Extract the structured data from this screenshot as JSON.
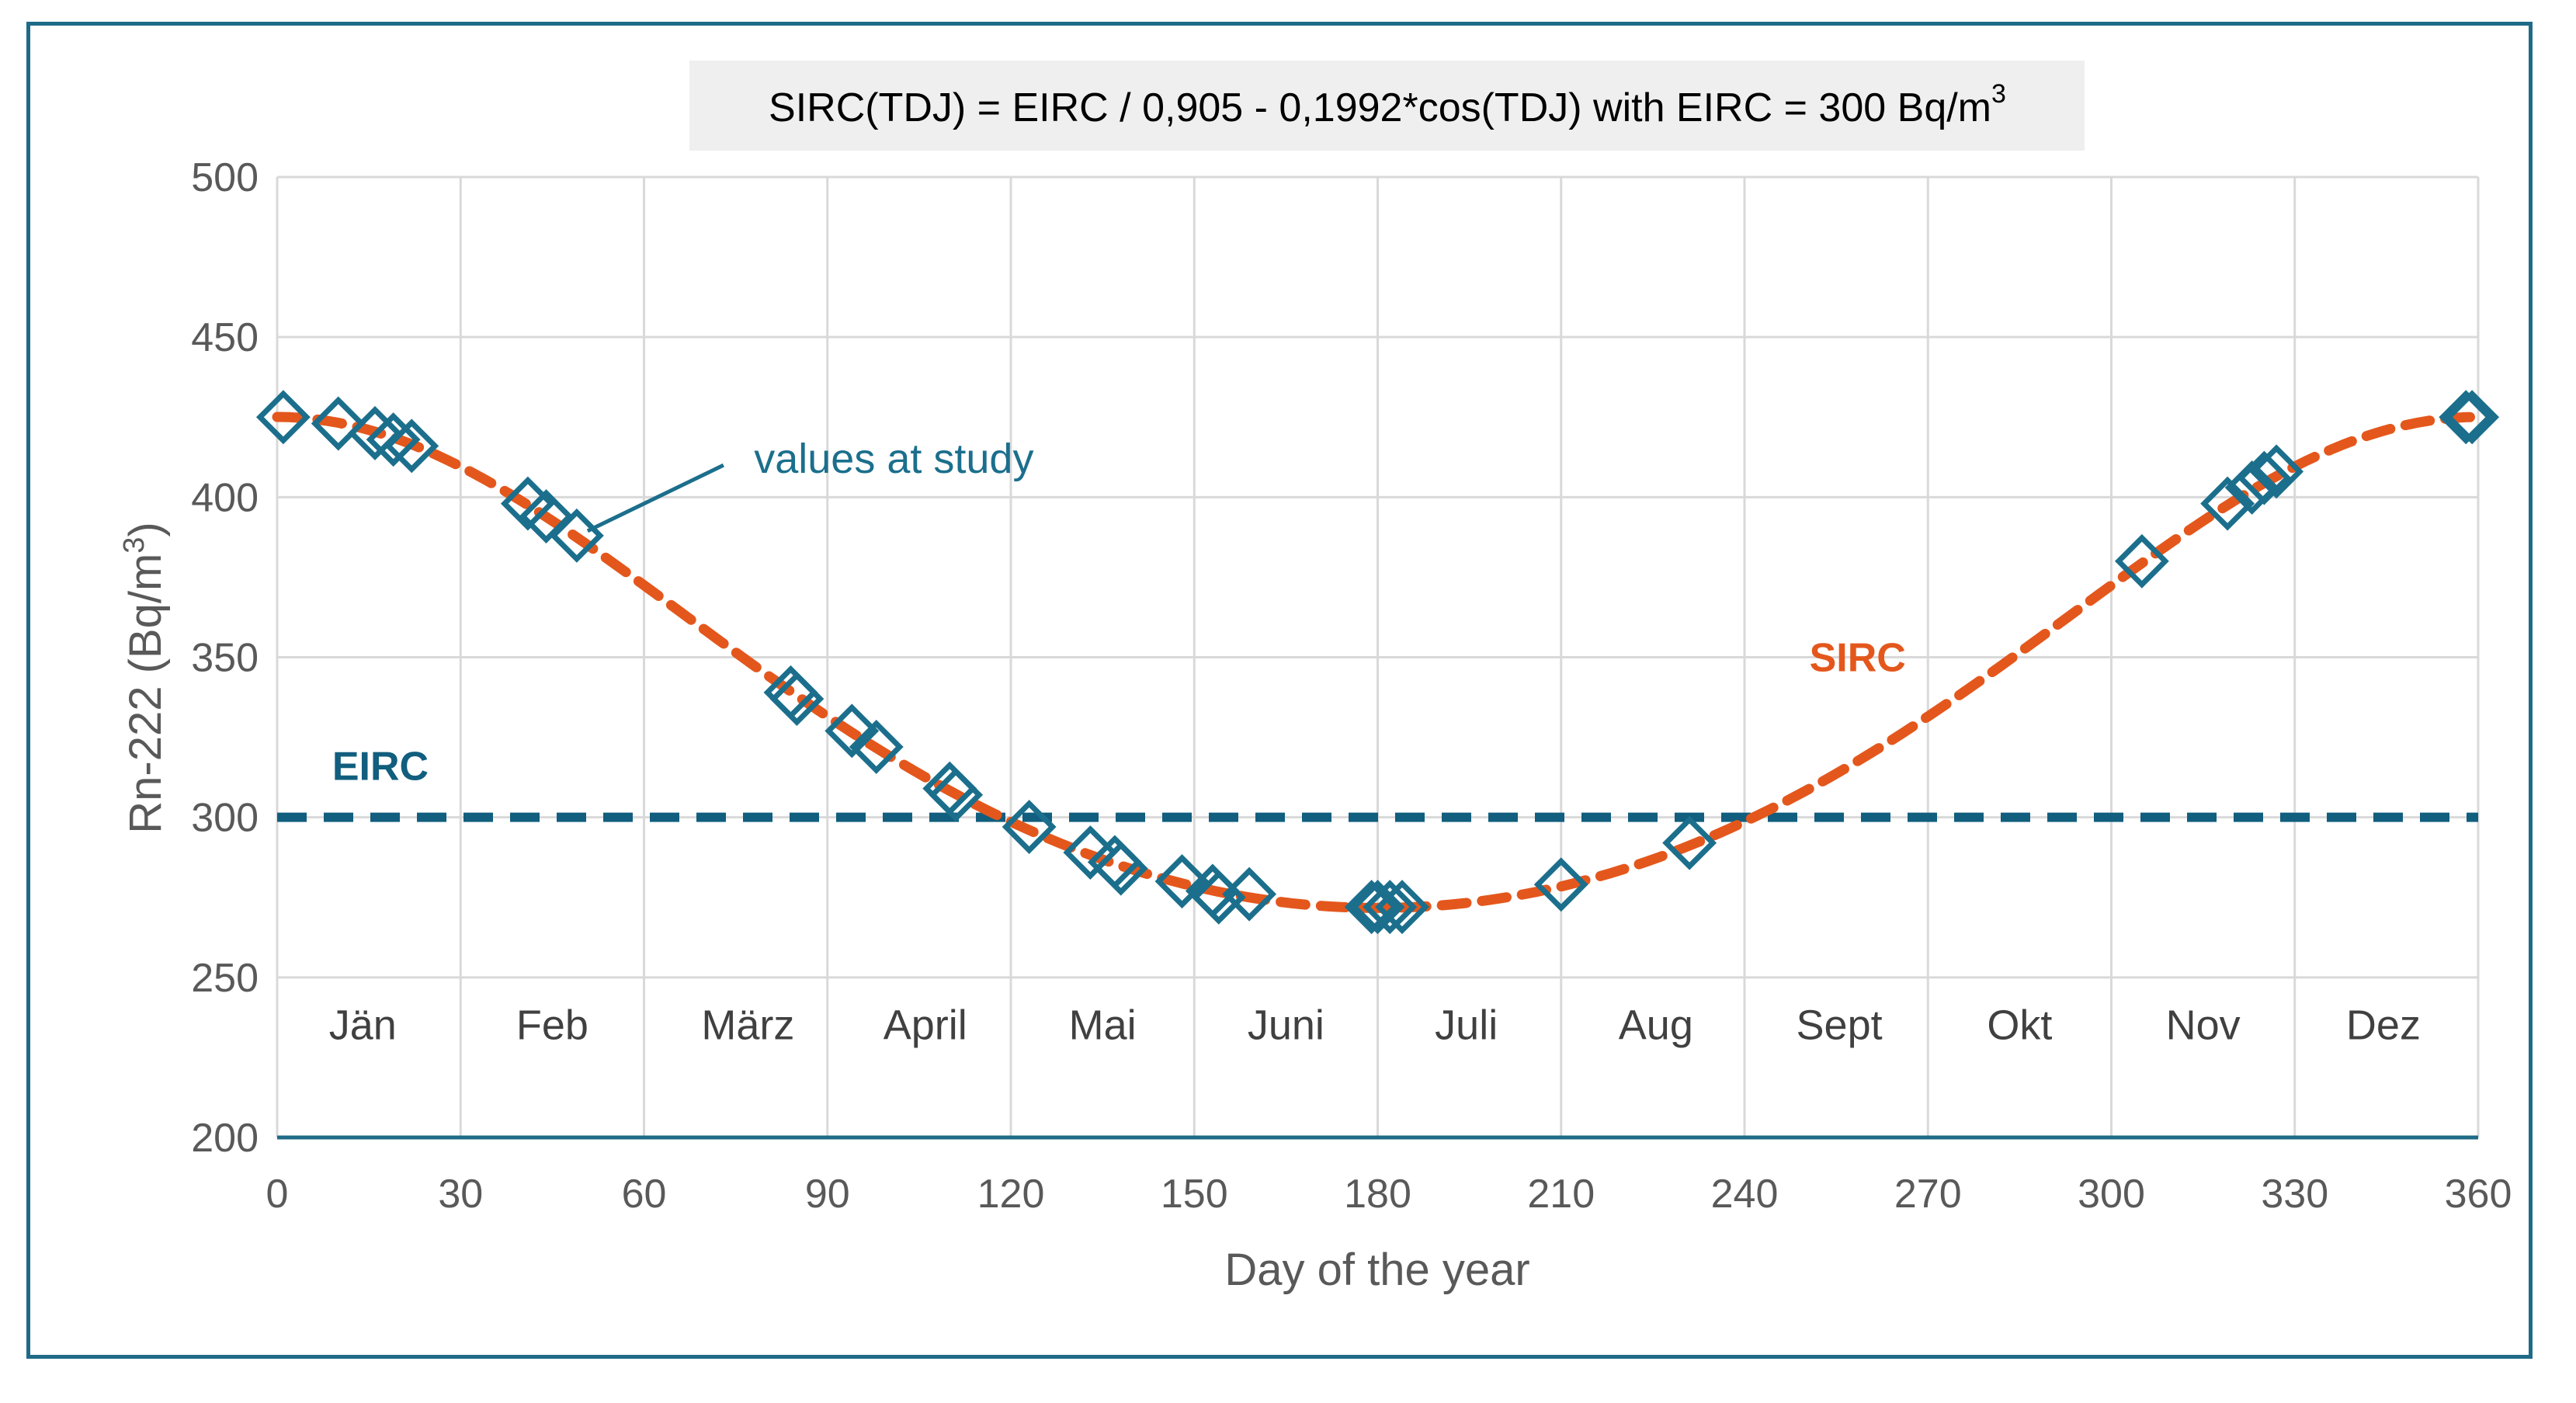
{
  "chart_data": {
    "type": "line",
    "title": "SIRC(TDJ) = EIRC / 0,905 - 0,1992*cos(TDJ)    with EIRC = 300 Bq/m",
    "title_superscript": "3",
    "xlabel": "Day of the year",
    "ylabel": "Rn-222 (Bq/m",
    "ylabel_superscript": "3",
    "ylabel_close": ")",
    "xlim": [
      0,
      360
    ],
    "ylim": [
      200,
      500
    ],
    "x_ticks": [
      0,
      30,
      60,
      90,
      120,
      150,
      180,
      210,
      240,
      270,
      300,
      330,
      360
    ],
    "y_ticks": [
      200,
      250,
      300,
      350,
      400,
      450,
      500
    ],
    "grid": true,
    "months": [
      {
        "label": "Jän",
        "x": 14
      },
      {
        "label": "Feb",
        "x": 45
      },
      {
        "label": "März",
        "x": 77
      },
      {
        "label": "April",
        "x": 106
      },
      {
        "label": "Mai",
        "x": 135
      },
      {
        "label": "Juni",
        "x": 165
      },
      {
        "label": "Juli",
        "x": 194.5
      },
      {
        "label": "Aug",
        "x": 225.5
      },
      {
        "label": "Sept",
        "x": 255.5
      },
      {
        "label": "Okt",
        "x": 285
      },
      {
        "label": "Nov",
        "x": 315
      },
      {
        "label": "Dez",
        "x": 344.5
      }
    ],
    "months_y": 235,
    "series": [
      {
        "name": "EIRC",
        "style": "dashed-line",
        "color": "#115e7e",
        "y": 300,
        "label": "EIRC",
        "label_at": {
          "x": 9,
          "y": 316
        }
      },
      {
        "name": "SIRC",
        "style": "dashed-curve",
        "color": "#e4571c",
        "eirc": 300,
        "label": "SIRC",
        "label_at": {
          "x": 258.5,
          "y": 350
        }
      },
      {
        "name": "values at study",
        "style": "diamond-markers",
        "color": "#1b6f8c",
        "label": "values at study",
        "label_at": {
          "x": 78,
          "y": 412
        },
        "x": [
          1,
          10,
          16,
          19,
          22,
          41,
          44,
          49,
          84,
          85,
          94,
          98,
          110,
          111,
          123,
          133,
          137,
          138,
          148,
          153,
          154,
          159,
          179,
          180,
          182,
          184,
          210,
          231,
          305,
          319,
          323,
          325,
          327,
          358,
          359
        ],
        "y": [
          425,
          423,
          420,
          418,
          416,
          398,
          394,
          388,
          339,
          337,
          327,
          322,
          309,
          307,
          297,
          289,
          286,
          284,
          280,
          277,
          275,
          276,
          272,
          272,
          272,
          272,
          279,
          292,
          380,
          398,
          403,
          406,
          408,
          425,
          425
        ]
      }
    ],
    "annotation_line": {
      "from": {
        "x": 49,
        "y": 388
      },
      "to": {
        "x": 73,
        "y": 410
      }
    },
    "colors": {
      "grid": "#d9d9d9",
      "axis": "#1f6b87",
      "frame": "#1f6b87",
      "formula_box": "#efefef"
    }
  }
}
